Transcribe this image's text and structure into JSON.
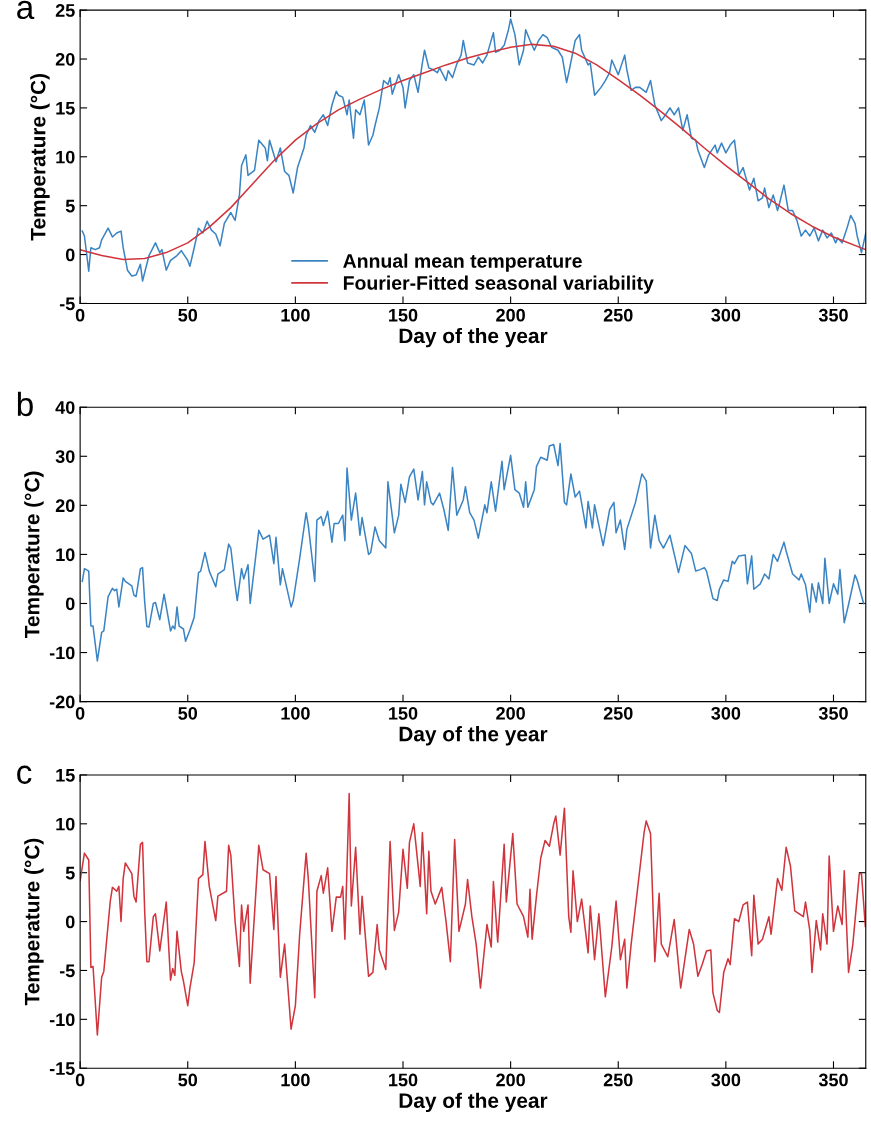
{
  "chart_data": [
    {
      "type": "line",
      "title": "a",
      "xlabel": "Day of the year",
      "ylabel": "Temperature (°C)",
      "xlim": [
        0,
        365
      ],
      "xticks": [
        0,
        50,
        100,
        150,
        200,
        250,
        300,
        350
      ],
      "ylim": [
        -5,
        25
      ],
      "yticks": [
        -5,
        0,
        5,
        10,
        15,
        20,
        25
      ],
      "legend": "bottom",
      "grid": false,
      "series": [
        {
          "name": "Annual mean temperature",
          "color": "#3b84c4",
          "x": [
            1,
            2,
            4,
            5,
            7,
            9,
            10,
            13,
            15,
            17,
            19,
            20,
            22,
            24,
            26,
            28,
            29,
            32,
            35,
            37,
            38,
            40,
            42,
            45,
            47,
            50,
            51,
            53,
            55,
            57,
            59,
            61,
            63,
            65,
            67,
            70,
            72,
            74,
            75,
            77,
            78,
            81,
            83,
            86,
            87,
            88,
            91,
            93,
            95,
            97,
            99,
            101,
            104,
            105,
            107,
            109,
            111,
            113,
            115,
            117,
            119,
            120,
            122,
            124,
            125,
            127,
            128,
            130,
            132,
            134,
            136,
            137,
            139,
            141,
            143,
            144,
            145,
            148,
            150,
            151,
            153,
            155,
            157,
            159,
            160,
            162,
            164,
            166,
            167,
            170,
            171,
            173,
            175,
            177,
            178,
            180,
            183,
            185,
            187,
            189,
            192,
            193,
            195,
            197,
            199,
            200,
            202,
            204,
            206,
            207,
            209,
            211,
            213,
            215,
            217,
            219,
            222,
            224,
            226,
            227,
            230,
            232,
            233,
            236,
            237,
            239,
            242,
            244,
            246,
            247,
            249,
            250,
            253,
            254,
            256,
            258,
            260,
            263,
            265,
            267,
            270,
            272,
            274,
            276,
            278,
            280,
            282,
            284,
            286,
            287,
            290,
            292,
            295,
            296,
            298,
            300,
            302,
            304,
            306,
            308,
            309,
            311,
            313,
            315,
            317,
            318,
            320,
            322,
            324,
            325,
            327,
            329,
            331,
            333,
            335,
            337,
            339,
            341,
            343,
            345,
            347,
            349,
            351,
            352,
            354,
            356,
            358,
            360,
            361,
            363,
            365
          ],
          "values": [
            2.4,
            1.9,
            -1.7,
            0.7,
            0.5,
            0.7,
            1.5,
            2.7,
            1.8,
            2.2,
            2.4,
            0.7,
            -1.6,
            -2.2,
            -2.1,
            -1,
            -2.7,
            -0.1,
            1.2,
            0.2,
            0.5,
            -1.6,
            -0.6,
            -0.1,
            0.4,
            -0.6,
            -1.2,
            0.7,
            2.7,
            2.2,
            3.4,
            2.5,
            2.1,
            0.9,
            3.2,
            4.3,
            3.5,
            6.1,
            9.1,
            10.2,
            8.1,
            8.6,
            11.7,
            10.9,
            9.6,
            11.7,
            9.5,
            10.9,
            8.5,
            8.1,
            6.3,
            8.9,
            10.9,
            12.2,
            13.2,
            12.5,
            13.7,
            14.3,
            13.2,
            15.3,
            16.7,
            16.3,
            16.1,
            14.3,
            15.8,
            11.9,
            14.8,
            14.3,
            15.8,
            11.2,
            12.2,
            13.2,
            15,
            17.8,
            17.4,
            18.1,
            16.4,
            18.4,
            17.1,
            15,
            17.8,
            18.4,
            16.6,
            19.6,
            20.9,
            19.1,
            18.9,
            18.6,
            19.1,
            17.8,
            18.8,
            18.1,
            19.5,
            20.4,
            21.9,
            19.6,
            19.4,
            20.2,
            19.6,
            20.4,
            22.7,
            20.7,
            20.9,
            21.4,
            23,
            24.1,
            22.5,
            19.4,
            20.9,
            23,
            21.9,
            20.9,
            21.9,
            22.5,
            22.2,
            21.2,
            20.9,
            20.2,
            17.6,
            18.6,
            21.9,
            22.5,
            20.9,
            19.4,
            19.6,
            16.3,
            17.1,
            17.8,
            18.6,
            19.9,
            18.9,
            18.4,
            20.4,
            18.9,
            16.8,
            17.1,
            17.1,
            16.6,
            17.8,
            15.3,
            13.7,
            14.3,
            15,
            14.3,
            15,
            12.7,
            14.3,
            11.9,
            11.7,
            10.7,
            8.9,
            10.2,
            11.2,
            10.4,
            11.4,
            10.4,
            11.2,
            11.7,
            8.1,
            8.9,
            8.1,
            6.6,
            7.8,
            5.5,
            5.8,
            6.8,
            4.8,
            6.1,
            4.5,
            5.3,
            7.1,
            4.5,
            4.5,
            3.5,
            1.9,
            2.5,
            1.9,
            2.7,
            1.4,
            2.5,
            1.7,
            2.2,
            1.2,
            1.7,
            1.2,
            2.5,
            4,
            3.2,
            1.9,
            0.2,
            2.2
          ]
        },
        {
          "name": "Fourier-Fitted seasonal variability",
          "color": "#d0343c",
          "x": [
            0,
            10,
            20,
            30,
            40,
            50,
            60,
            70,
            80,
            90,
            100,
            110,
            120,
            130,
            140,
            150,
            160,
            170,
            180,
            190,
            200,
            210,
            220,
            230,
            240,
            250,
            260,
            270,
            280,
            290,
            300,
            310,
            320,
            330,
            340,
            350,
            365
          ],
          "values": [
            0.5,
            -0.1,
            -0.5,
            -0.4,
            0.2,
            1.2,
            2.8,
            4.8,
            7.2,
            9.6,
            11.7,
            13.4,
            14.8,
            15.9,
            16.9,
            17.8,
            18.6,
            19.4,
            20.1,
            20.7,
            21.2,
            21.5,
            21.3,
            20.6,
            19.4,
            17.9,
            16.3,
            14.6,
            12.8,
            10.9,
            9.1,
            7.4,
            5.7,
            4.2,
            2.9,
            1.8,
            0.5
          ]
        }
      ]
    },
    {
      "type": "line",
      "title": "b",
      "xlabel": "Day of the year",
      "ylabel": "Temperature (°C)",
      "xlim": [
        0,
        365
      ],
      "xticks": [
        0,
        50,
        100,
        150,
        200,
        250,
        300,
        350
      ],
      "ylim": [
        -20,
        40
      ],
      "yticks": [
        -20,
        -10,
        0,
        10,
        20,
        30,
        40
      ],
      "grid": false,
      "series": [
        {
          "color": "#3b84c4",
          "x": [
            1,
            2,
            4,
            5,
            6,
            8,
            10,
            11,
            13,
            15,
            16,
            17,
            18,
            20,
            21,
            24,
            25,
            26,
            28,
            29,
            30,
            31,
            32,
            34,
            35,
            37,
            39,
            42,
            43,
            44,
            45,
            46,
            48,
            49,
            51,
            53,
            55,
            56,
            58,
            60,
            63,
            64,
            67,
            69,
            70,
            72,
            73,
            75,
            76,
            78,
            79,
            83,
            85,
            88,
            90,
            91,
            93,
            94,
            98,
            99,
            102,
            105,
            106,
            109,
            110,
            112,
            113,
            115,
            117,
            118,
            120,
            122,
            123,
            124,
            126,
            128,
            130,
            131,
            134,
            135,
            137,
            139,
            142,
            143,
            146,
            148,
            149,
            151,
            153,
            155,
            157,
            159,
            160,
            161,
            163,
            164,
            167,
            169,
            171,
            173,
            175,
            178,
            179,
            181,
            183,
            185,
            188,
            189,
            191,
            193,
            196,
            197,
            200,
            202,
            204,
            206,
            207,
            208,
            211,
            212,
            214,
            217,
            218,
            220,
            222,
            223,
            225,
            226,
            228,
            230,
            232,
            235,
            236,
            238,
            239,
            243,
            246,
            248,
            249,
            251,
            253,
            254,
            258,
            261,
            263,
            265,
            267,
            269,
            271,
            274,
            278,
            281,
            284,
            286,
            288,
            290,
            291,
            293,
            294,
            296,
            297,
            299,
            301,
            303,
            304,
            306,
            309,
            310,
            312,
            313,
            316,
            318,
            320,
            322,
            324,
            327,
            328,
            331,
            334,
            335,
            337,
            339,
            340,
            342,
            343,
            345,
            346,
            348,
            350,
            352,
            353,
            355,
            357,
            360,
            361,
            364
          ],
          "values": [
            4.5,
            7.1,
            6.6,
            -4.6,
            -4.6,
            -11.7,
            -5.9,
            -5.6,
            1.4,
            3.1,
            2.6,
            2.9,
            -0.7,
            5.2,
            4.5,
            3.6,
            1.7,
            1.4,
            7.1,
            7.3,
            0.3,
            -4.7,
            -4.8,
            0,
            0.2,
            -3.3,
            1.9,
            -5.6,
            -4.6,
            -5.2,
            -0.7,
            -4.6,
            -5.2,
            -7.7,
            -5.4,
            -2.8,
            6.3,
            6.6,
            10.4,
            6.6,
            3.4,
            6,
            6.9,
            12.1,
            11.3,
            3.8,
            0.6,
            7.1,
            5,
            7.9,
            0,
            14.9,
            13.1,
            13.9,
            8.1,
            13.5,
            3.8,
            7.1,
            -0.7,
            0.6,
            9.2,
            18.5,
            15.9,
            4.5,
            17,
            17.7,
            15.9,
            18.8,
            12.5,
            16.3,
            16.3,
            18,
            12.8,
            27.6,
            17,
            22.5,
            13.9,
            17.5,
            10,
            10.4,
            15.6,
            12.8,
            11.3,
            24.8,
            14.4,
            18,
            24.3,
            20.6,
            25.8,
            27.4,
            21.1,
            26.9,
            20.1,
            24.8,
            20.6,
            20.1,
            22.5,
            19.1,
            14.9,
            27.7,
            18,
            21.1,
            23.8,
            18.5,
            17,
            13.3,
            20.1,
            18.5,
            24.8,
            18.8,
            29,
            23.2,
            30.2,
            23.2,
            22.5,
            19.6,
            24.8,
            19.6,
            23.2,
            27.9,
            29.8,
            29.2,
            32.1,
            32.4,
            28.1,
            32.6,
            20.6,
            20.1,
            26.4,
            21.7,
            22.9,
            15.4,
            20.8,
            15.4,
            20.1,
            11.8,
            19.1,
            20.6,
            14.4,
            17,
            11,
            15.1,
            20.6,
            26.4,
            25,
            11.3,
            18,
            12.8,
            11.3,
            13.9,
            6.3,
            11.8,
            10.2,
            6.6,
            6.9,
            7.3,
            6.6,
            2.9,
            1,
            0.6,
            2.9,
            4.8,
            4.5,
            8.6,
            8.1,
            9.7,
            9.9,
            4,
            9.7,
            2.9,
            4,
            6,
            5,
            10,
            8.6,
            12.5,
            10.7,
            6,
            4.8,
            6,
            3.8,
            -1.8,
            4,
            0.3,
            4.2,
            0,
            9.2,
            0,
            4,
            1.9,
            6.9,
            -3.9,
            -0.2,
            5.8,
            4.8,
            0
          ]
        }
      ]
    },
    {
      "type": "line",
      "title": "c",
      "xlabel": "Day of the year",
      "ylabel": "Temperature (°C)",
      "xlim": [
        0,
        365
      ],
      "xticks": [
        0,
        50,
        100,
        150,
        200,
        250,
        300,
        350
      ],
      "ylim": [
        -15,
        15
      ],
      "yticks": [
        -15,
        -10,
        -5,
        0,
        5,
        10,
        15
      ],
      "grid": false,
      "series": [
        {
          "color": "#d0343c",
          "x": [
            0,
            2,
            4,
            5,
            6,
            8,
            10,
            11,
            14,
            15,
            17,
            18,
            19,
            20,
            21,
            24,
            25,
            26,
            28,
            29,
            30,
            31,
            32,
            34,
            35,
            37,
            40,
            42,
            43,
            44,
            45,
            47,
            48,
            50,
            51,
            53,
            55,
            57,
            58,
            60,
            63,
            64,
            68,
            69,
            70,
            72,
            74,
            75,
            76,
            78,
            79,
            83,
            85,
            88,
            90,
            91,
            93,
            95,
            98,
            100,
            102,
            105,
            106,
            109,
            110,
            112,
            113,
            115,
            117,
            119,
            121,
            122,
            123,
            125,
            126,
            128,
            130,
            131,
            134,
            136,
            138,
            139,
            142,
            144,
            146,
            148,
            150,
            152,
            153,
            155,
            158,
            159,
            161,
            162,
            163,
            165,
            168,
            170,
            172,
            174,
            176,
            179,
            180,
            182,
            184,
            186,
            189,
            191,
            192,
            194,
            197,
            198,
            201,
            203,
            206,
            208,
            209,
            210,
            212,
            214,
            216,
            218,
            220,
            221,
            223,
            225,
            227,
            228,
            229,
            231,
            233,
            236,
            237,
            239,
            241,
            244,
            247,
            249,
            251,
            253,
            254,
            256,
            259,
            262,
            263,
            265,
            267,
            269,
            270,
            273,
            276,
            279,
            283,
            285,
            287,
            289,
            291,
            293,
            294,
            296,
            297,
            299,
            301,
            302,
            304,
            306,
            308,
            310,
            312,
            313,
            315,
            317,
            320,
            321,
            324,
            326,
            328,
            330,
            332,
            336,
            337,
            339,
            340,
            342,
            344,
            345,
            347,
            348,
            350,
            352,
            354,
            355,
            357,
            359,
            362,
            363,
            364.8
          ],
          "values": [
            4.2,
            7,
            6.3,
            -4.7,
            -4.6,
            -11.6,
            -5.7,
            -5.1,
            2.1,
            3.5,
            3.1,
            3.6,
            0,
            4.4,
            6,
            4.9,
            2.6,
            2,
            7.9,
            8.1,
            1,
            -4.1,
            -4.1,
            0.5,
            0.8,
            -3,
            2,
            -6,
            -4.8,
            -5.5,
            -1,
            -5.1,
            -6.1,
            -8.6,
            -6.8,
            -4.2,
            4.4,
            4.8,
            8.2,
            3.6,
            0.1,
            2.6,
            3.1,
            7.8,
            6.8,
            0,
            -4.6,
            1.7,
            -1,
            1.7,
            -6.3,
            7.8,
            5.3,
            4.9,
            -0.8,
            4.6,
            -5.7,
            -2.3,
            -11,
            -8.6,
            -1.3,
            7,
            4.4,
            -7.8,
            3.1,
            4.7,
            2.9,
            5.5,
            -1,
            2.5,
            2.5,
            3.6,
            -1.8,
            13.1,
            1.6,
            7.6,
            -1.3,
            2.6,
            -5.6,
            -5.2,
            -0.3,
            -2.9,
            -4.9,
            8.2,
            -0.9,
            1,
            7.4,
            3.4,
            8.1,
            10,
            3.6,
            9.1,
            0.8,
            7.2,
            3.1,
            1.8,
            3.5,
            0,
            -4.1,
            8.4,
            -1,
            1.8,
            4.3,
            0.5,
            -2.3,
            -6.8,
            -0.3,
            -2.6,
            4.1,
            -2.1,
            7.9,
            2,
            9,
            1.8,
            0.5,
            -1.6,
            3.3,
            -1.8,
            2.6,
            6.5,
            8.3,
            7.7,
            10,
            10.8,
            6.8,
            11.6,
            0.5,
            -1.1,
            5.2,
            0,
            2.3,
            -3.2,
            1.6,
            -3.9,
            0.8,
            -7.7,
            -2.6,
            2.1,
            -3.9,
            -1.8,
            -6.8,
            -2.3,
            3.4,
            9.1,
            10.3,
            9,
            -4.1,
            2.9,
            -2.3,
            -3.6,
            0.2,
            -6.8,
            -0.8,
            -2.3,
            -5.6,
            -4.4,
            -3,
            -2.9,
            -7.3,
            -9.1,
            -9.3,
            -5.2,
            -3.8,
            -4.4,
            0.3,
            0,
            1.7,
            2,
            -3.5,
            2.7,
            -2.3,
            -1.8,
            0.5,
            -1.3,
            4.4,
            3.2,
            7.6,
            5.7,
            1.1,
            0.5,
            2,
            -0.9,
            -5.2,
            0.1,
            -2.9,
            0.8,
            -2.3,
            6.7,
            -1,
            1.6,
            -0.3,
            5.2,
            -5.2,
            -2.3,
            4.9,
            4.9,
            -0.5
          ]
        }
      ]
    }
  ]
}
